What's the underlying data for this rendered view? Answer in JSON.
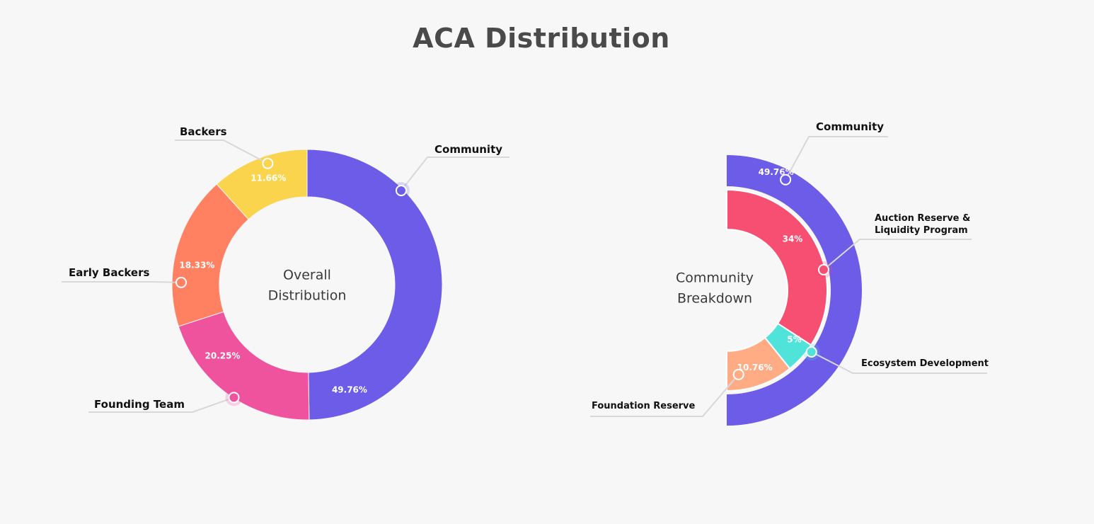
{
  "page": {
    "title": "ACA Distribution"
  },
  "chart_data": [
    {
      "type": "pie",
      "center_label": [
        "Overall",
        "Distribution"
      ],
      "slices": [
        {
          "label": "Community",
          "value": 49.76,
          "value_label": "49.76%",
          "color": "#6c5ce7"
        },
        {
          "label": "Founding Team",
          "value": 20.25,
          "value_label": "20.25%",
          "color": "#ef539e"
        },
        {
          "label": "Early Backers",
          "value": 18.33,
          "value_label": "18.33%",
          "color": "#ff8162"
        },
        {
          "label": "Backers",
          "value": 11.66,
          "value_label": "11.66%",
          "color": "#f9d44c"
        }
      ]
    },
    {
      "type": "pie",
      "center_label": [
        "Community",
        "Breakdown"
      ],
      "outer": {
        "label": "Community",
        "value": 49.76,
        "value_label": "49.76%",
        "color": "#6c5ce7"
      },
      "slices": [
        {
          "label": "Auction Reserve & Liquidity Program",
          "label_lines": [
            "Auction Reserve &",
            "Liquidity Program"
          ],
          "value": 34,
          "value_label": "34%",
          "color": "#f74f72"
        },
        {
          "label": "Ecosystem Development",
          "value": 5,
          "value_label": "5%",
          "color": "#4fe3d9"
        },
        {
          "label": "Foundation Reserve",
          "value": 10.76,
          "value_label": "10.76%",
          "color": "#ffac84"
        }
      ]
    }
  ]
}
